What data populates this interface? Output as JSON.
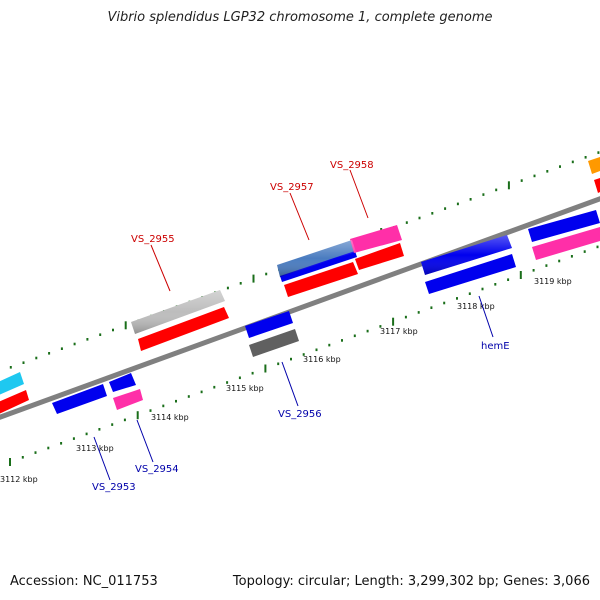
{
  "title": "Vibrio splendidus LGP32 chromosome 1, complete genome",
  "footer": {
    "accession": "Accession: NC_011753",
    "summary": "Topology: circular; Length: 3,299,302 bp; Genes: 3,066"
  },
  "kbp_labels": [
    "3112 kbp",
    "3113 kbp",
    "3114 kbp",
    "3115 kbp",
    "3116 kbp",
    "3117 kbp",
    "3118 kbp",
    "3119 kbp"
  ],
  "gene_labels": {
    "forward": [
      "VS_2955",
      "VS_2957",
      "VS_2958"
    ],
    "reverse": [
      "VS_2953",
      "VS_2954",
      "VS_2956",
      "hemE"
    ]
  },
  "colors": {
    "forward_label": "#cc0000",
    "reverse_label": "#0000aa",
    "backbone": "#808080",
    "tick": "#1a6e1a",
    "red": "#ff0000",
    "blue": "#0000ee",
    "magenta": "#ff2fa8",
    "cyan": "#1ec8f0",
    "gray": "#bdbdbd",
    "darkgray": "#606060",
    "steelblue": "#4a7cc0",
    "orange": "#ff9900"
  }
}
